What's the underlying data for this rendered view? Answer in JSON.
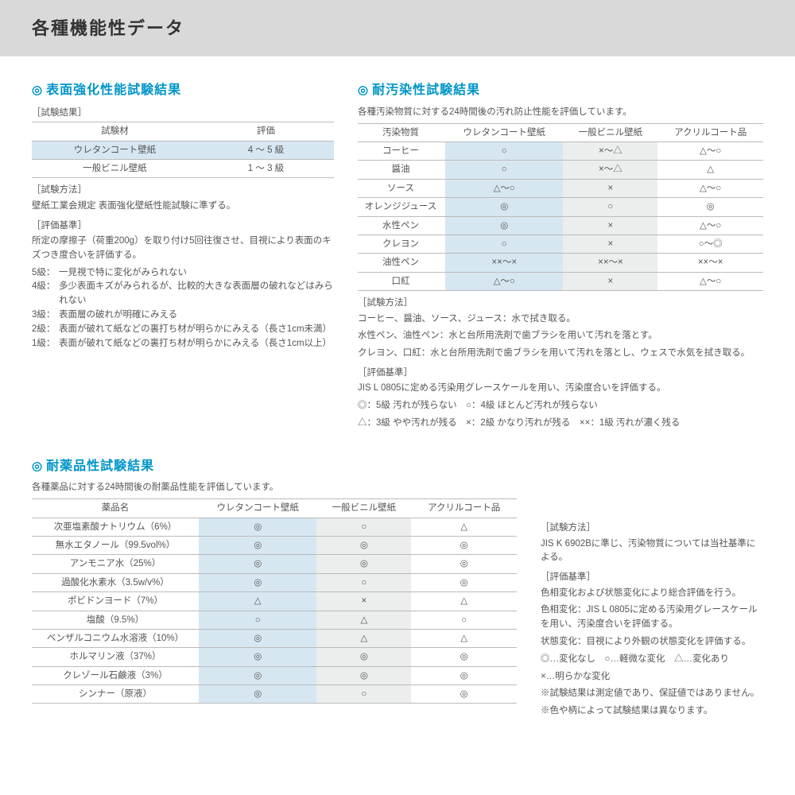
{
  "header": "各種機能性データ",
  "s1": {
    "title": "表面強化性能試験結果",
    "res_label": "［試験結果］",
    "th1": "試験材",
    "th2": "評価",
    "r1c1": "ウレタンコート壁紙",
    "r1c2": "4 ～ 5 級",
    "r2c1": "一般ビニル壁紙",
    "r2c2": "1 ～ 3 級",
    "method_label": "［試験方法］",
    "method": "壁紙工業会規定 表面強化壁紙性能試験に準ずる。",
    "base_label": "［評価基準］",
    "base": "所定の摩擦子（荷重200g）を取り付け5回往復させ、目視により表面のキズつき度合いを評価する。",
    "g5l": "5級：",
    "g5": "一見視で特に変化がみられない",
    "g4l": "4級：",
    "g4": "多少表面キズがみられるが、比較的大きな表面層の破れなどはみられない",
    "g3l": "3級：",
    "g3": "表面層の破れが明確にみえる",
    "g2l": "2級：",
    "g2": "表面が破れて紙などの裏打ち材が明らかにみえる（長さ1cm未満）",
    "g1l": "1級：",
    "g1": "表面が破れて紙などの裏打ち材が明らかにみえる（長さ1cm以上）"
  },
  "s2": {
    "title": "耐汚染性試験結果",
    "desc": "各種汚染物質に対する24時間後の汚れ防止性能を評価しています。",
    "h1": "汚染物質",
    "h2": "ウレタンコート壁紙",
    "h3": "一般ビニル壁紙",
    "h4": "アクリルコート品",
    "rows": [
      [
        "コーヒー",
        "○",
        "×～△",
        "△～○"
      ],
      [
        "醤油",
        "○",
        "×～△",
        "△"
      ],
      [
        "ソース",
        "△～○",
        "×",
        "△～○"
      ],
      [
        "オレンジジュース",
        "◎",
        "○",
        "◎"
      ],
      [
        "水性ペン",
        "◎",
        "×",
        "△～○"
      ],
      [
        "クレヨン",
        "○",
        "×",
        "○～◎"
      ],
      [
        "油性ペン",
        "××～×",
        "××～×",
        "××～×"
      ],
      [
        "口紅",
        "△～○",
        "×",
        "△～○"
      ]
    ],
    "method_label": "［試験方法］",
    "m1": "コーヒー、醤油、ソース、ジュース：水で拭き取る。",
    "m2": "水性ペン、油性ペン：水と台所用洗剤で歯ブラシを用いて汚れを落とす。",
    "m3": "クレヨン、口紅：水と台所用洗剤で歯ブラシを用いて汚れを落とし、ウェスで水気を拭き取る。",
    "base_label": "［評価基準］",
    "b1": "JIS L 0805に定める汚染用グレースケールを用い、汚染度合いを評価する。",
    "b2": "◎：5級 汚れが残らない　○：4級 ほとんど汚れが残らない",
    "b3": "△：3級 やや汚れが残る　×：2級 かなり汚れが残る　××：1級 汚れが濃く残る"
  },
  "s3": {
    "title": "耐薬品性試験結果",
    "desc": "各種薬品に対する24時間後の耐薬品性能を評価しています。",
    "h1": "薬品名",
    "h2": "ウレタンコート壁紙",
    "h3": "一般ビニル壁紙",
    "h4": "アクリルコート品",
    "rows": [
      [
        "次亜塩素酸ナトリウム（6%）",
        "◎",
        "○",
        "△"
      ],
      [
        "無水エタノール（99.5vol%）",
        "◎",
        "◎",
        "◎"
      ],
      [
        "アンモニア水（25%）",
        "◎",
        "◎",
        "◎"
      ],
      [
        "過酸化水素水（3.5w/v%）",
        "◎",
        "○",
        "◎"
      ],
      [
        "ポビドンヨード（7%）",
        "△",
        "×",
        "△"
      ],
      [
        "塩酸（9.5%）",
        "○",
        "△",
        "○"
      ],
      [
        "ベンザルコニウム水溶液（10%）",
        "◎",
        "△",
        "△"
      ],
      [
        "ホルマリン液（37%）",
        "◎",
        "◎",
        "◎"
      ],
      [
        "クレゾール石鹸液（3%）",
        "◎",
        "◎",
        "◎"
      ],
      [
        "シンナー（原液）",
        "◎",
        "○",
        "◎"
      ]
    ],
    "side": {
      "method_label": "［試験方法］",
      "m1": "JIS K 6902Bに準じ、汚染物質については当社基準による。",
      "base_label": "［評価基準］",
      "b1": "色相変化および状態変化により総合評価を行う。",
      "b2": "色相変化：JIS L 0805に定める汚染用グレースケールを用い、汚染度合いを評価する。",
      "b3": "状態変化：目視により外観の状態変化を評価する。",
      "b4": "◎…変化なし　○…軽微な変化　△…変化あり",
      "b5": "×…明らかな変化",
      "n1": "※試験結果は測定値であり、保証値ではありません。",
      "n2": "※色や柄によって試験結果は異なります。"
    }
  }
}
